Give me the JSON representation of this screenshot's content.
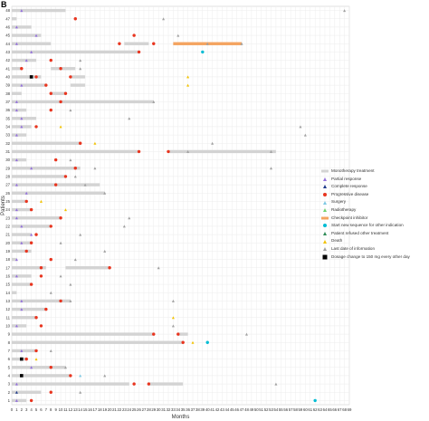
{
  "panel_tag": "B",
  "legend": {
    "items": [
      {
        "key": "treatment",
        "label": "Monotherapy treatment",
        "color": "#d3d3d3",
        "shape": "bar"
      },
      {
        "key": "partial",
        "label": "Partial response",
        "color": "#9370db",
        "shape": "triangle-small"
      },
      {
        "key": "complete",
        "label": "Complete response",
        "color": "#1e3a8a",
        "shape": "triangle-small"
      },
      {
        "key": "progressive",
        "label": "Progressive disease",
        "color": "#e8351f",
        "shape": "dot"
      },
      {
        "key": "surgery",
        "label": "Surgery",
        "color": "#7ec8e3",
        "shape": "triangle-small"
      },
      {
        "key": "radiotherapy",
        "label": "Radiotherapy",
        "color": "#6fd36f",
        "shape": "triangle-small"
      },
      {
        "key": "checkpoint",
        "label": "Checkpoint inhibitor",
        "color": "#f4a460",
        "shape": "bar"
      },
      {
        "key": "new_sequence",
        "label": "Start new sequence for other indication",
        "color": "#00bcd4",
        "shape": "dot"
      },
      {
        "key": "refused",
        "label": "Patient refused other treatment",
        "color": "#2e8b57",
        "shape": "triangle-small"
      },
      {
        "key": "death",
        "label": "Death",
        "color": "#f2c200",
        "shape": "triangle-small"
      },
      {
        "key": "last_info",
        "label": "Last date of information",
        "color": "#a0a0a0",
        "shape": "triangle-small"
      },
      {
        "key": "dosage",
        "label": "Dosage change to 150 mg every other day",
        "color": "#000000",
        "shape": "square"
      }
    ]
  },
  "chart_data": {
    "type": "swimmer",
    "xlabel": "Months",
    "ylabel": "Patients",
    "xlim": [
      0,
      69
    ],
    "x_ticks": [
      0,
      1,
      2,
      3,
      4,
      5,
      6,
      7,
      8,
      9,
      10,
      11,
      12,
      13,
      14,
      15,
      16,
      17,
      18,
      19,
      20,
      21,
      22,
      23,
      24,
      25,
      26,
      27,
      28,
      29,
      30,
      31,
      32,
      33,
      34,
      35,
      36,
      37,
      38,
      39,
      40,
      41,
      42,
      43,
      44,
      45,
      46,
      47,
      48,
      49,
      50,
      51,
      52,
      53,
      54,
      55,
      56,
      57,
      58,
      59,
      60,
      61,
      62,
      63,
      64,
      65,
      66,
      67,
      68,
      69
    ],
    "rows": [
      {
        "patient": "48",
        "bars": [
          [
            0,
            11
          ]
        ],
        "events": [
          [
            "partial",
            2
          ],
          [
            "last_info",
            68
          ]
        ]
      },
      {
        "patient": "47",
        "bars": [
          [
            0,
            1
          ]
        ],
        "events": [
          [
            "progressive",
            13
          ],
          [
            "last_info",
            31
          ]
        ]
      },
      {
        "patient": "46",
        "bars": [
          [
            0,
            4
          ]
        ],
        "events": [
          [
            "partial",
            1
          ]
        ]
      },
      {
        "patient": "45",
        "bars": [
          [
            0,
            6
          ]
        ],
        "events": [
          [
            "partial",
            5
          ],
          [
            "progressive",
            25
          ],
          [
            "last_info",
            34
          ]
        ]
      },
      {
        "patient": "44",
        "bars": [
          [
            0,
            8
          ],
          [
            23,
            28
          ]
        ],
        "checkpoint": [
          [
            33,
            47
          ]
        ],
        "events": [
          [
            "partial",
            1
          ],
          [
            "progressive",
            22
          ],
          [
            "progressive",
            29
          ],
          [
            "last_info",
            40
          ],
          [
            "last_info",
            47
          ]
        ]
      },
      {
        "patient": "43",
        "bars": [
          [
            0,
            26
          ]
        ],
        "events": [
          [
            "partial",
            4
          ],
          [
            "progressive",
            26
          ],
          [
            "new_sequence",
            39
          ]
        ]
      },
      {
        "patient": "42",
        "bars": [
          [
            0,
            5
          ]
        ],
        "events": [
          [
            "partial",
            3
          ],
          [
            "progressive",
            8
          ],
          [
            "last_info",
            14
          ]
        ]
      },
      {
        "patient": "41",
        "bars": [
          [
            0,
            2
          ],
          [
            8,
            13
          ]
        ],
        "events": [
          [
            "progressive",
            2
          ],
          [
            "progressive",
            10
          ],
          [
            "last_info",
            14
          ]
        ]
      },
      {
        "patient": "40",
        "bars": [
          [
            0,
            6
          ],
          [
            12,
            15
          ]
        ],
        "events": [
          [
            "dosage",
            4
          ],
          [
            "progressive",
            5
          ],
          [
            "progressive",
            12
          ],
          [
            "death",
            36
          ]
        ]
      },
      {
        "patient": "39",
        "bars": [
          [
            0,
            7
          ],
          [
            12,
            15
          ]
        ],
        "events": [
          [
            "partial",
            2
          ],
          [
            "progressive",
            7
          ],
          [
            "death",
            36
          ]
        ]
      },
      {
        "patient": "38",
        "bars": [
          [
            0,
            2
          ],
          [
            8,
            11
          ]
        ],
        "events": [
          [
            "progressive",
            8
          ],
          [
            "progressive",
            11
          ]
        ]
      },
      {
        "patient": "37",
        "bars": [
          [
            0,
            29
          ]
        ],
        "events": [
          [
            "partial",
            1
          ],
          [
            "progressive",
            10
          ],
          [
            "last_info",
            29
          ]
        ]
      },
      {
        "patient": "36",
        "bars": [
          [
            0,
            3
          ]
        ],
        "events": [
          [
            "partial",
            1
          ],
          [
            "progressive",
            8
          ],
          [
            "last_info",
            12
          ]
        ]
      },
      {
        "patient": "35",
        "bars": [
          [
            0,
            5
          ]
        ],
        "events": [
          [
            "partial",
            2
          ],
          [
            "last_info",
            24
          ]
        ]
      },
      {
        "patient": "34",
        "bars": [
          [
            0,
            4
          ]
        ],
        "events": [
          [
            "partial",
            2
          ],
          [
            "progressive",
            5
          ],
          [
            "death",
            10
          ],
          [
            "last_info",
            59
          ]
        ]
      },
      {
        "patient": "33",
        "bars": [
          [
            0,
            3
          ]
        ],
        "events": [
          [
            "partial",
            1
          ],
          [
            "last_info",
            60
          ]
        ]
      },
      {
        "patient": "32",
        "bars": [
          [
            0,
            14
          ]
        ],
        "events": [
          [
            "progressive",
            14
          ],
          [
            "death",
            17
          ],
          [
            "last_info",
            41
          ]
        ]
      },
      {
        "patient": "31",
        "bars": [
          [
            0,
            26
          ],
          [
            32,
            54
          ]
        ],
        "events": [
          [
            "progressive",
            26
          ],
          [
            "progressive",
            32
          ],
          [
            "last_info",
            36
          ],
          [
            "last_info",
            53
          ]
        ]
      },
      {
        "patient": "30",
        "bars": [
          [
            0,
            3
          ]
        ],
        "events": [
          [
            "partial",
            1
          ],
          [
            "progressive",
            9
          ],
          [
            "last_info",
            12
          ]
        ]
      },
      {
        "patient": "29",
        "bars": [
          [
            0,
            14
          ]
        ],
        "events": [
          [
            "partial",
            4
          ],
          [
            "progressive",
            13
          ],
          [
            "last_info",
            17
          ],
          [
            "last_info",
            53
          ]
        ]
      },
      {
        "patient": "28",
        "bars": [
          [
            0,
            11
          ]
        ],
        "events": [
          [
            "progressive",
            11
          ],
          [
            "last_info",
            13
          ]
        ]
      },
      {
        "patient": "27",
        "bars": [
          [
            0,
            18
          ]
        ],
        "events": [
          [
            "partial",
            1
          ],
          [
            "progressive",
            9
          ],
          [
            "last_info",
            15
          ]
        ]
      },
      {
        "patient": "26",
        "bars": [
          [
            0,
            19
          ]
        ],
        "events": [
          [
            "partial",
            3
          ],
          [
            "last_info",
            19
          ]
        ]
      },
      {
        "patient": "25",
        "bars": [
          [
            0,
            3
          ]
        ],
        "events": [
          [
            "progressive",
            3
          ],
          [
            "death",
            6
          ]
        ]
      },
      {
        "patient": "24",
        "bars": [
          [
            0,
            4
          ]
        ],
        "events": [
          [
            "partial",
            1
          ],
          [
            "progressive",
            4
          ],
          [
            "death",
            11
          ]
        ]
      },
      {
        "patient": "23",
        "bars": [
          [
            0,
            10
          ]
        ],
        "events": [
          [
            "partial",
            1
          ],
          [
            "progressive",
            10
          ],
          [
            "last_info",
            24
          ]
        ]
      },
      {
        "patient": "22",
        "bars": [
          [
            0,
            8
          ]
        ],
        "events": [
          [
            "partial",
            2
          ],
          [
            "progressive",
            8
          ],
          [
            "last_info",
            23
          ]
        ]
      },
      {
        "patient": "21",
        "bars": [
          [
            0,
            4
          ]
        ],
        "events": [
          [
            "partial",
            4
          ],
          [
            "progressive",
            5
          ],
          [
            "last_info",
            14
          ]
        ]
      },
      {
        "patient": "20",
        "bars": [
          [
            0,
            4
          ]
        ],
        "events": [
          [
            "partial",
            2
          ],
          [
            "progressive",
            4
          ],
          [
            "last_info",
            10
          ]
        ]
      },
      {
        "patient": "19",
        "bars": [
          [
            0,
            4
          ]
        ],
        "events": [
          [
            "progressive",
            3
          ],
          [
            "last_info",
            19
          ]
        ]
      },
      {
        "patient": "18",
        "bars": [
          [
            0,
            1
          ]
        ],
        "events": [
          [
            "partial",
            1
          ],
          [
            "progressive",
            8
          ],
          [
            "last_info",
            13
          ]
        ]
      },
      {
        "patient": "17",
        "bars": [
          [
            0,
            7
          ],
          [
            11,
            20
          ]
        ],
        "events": [
          [
            "progressive",
            6
          ],
          [
            "progressive",
            20
          ],
          [
            "last_info",
            30
          ]
        ]
      },
      {
        "patient": "16",
        "bars": [
          [
            0,
            4
          ]
        ],
        "events": [
          [
            "partial",
            1
          ],
          [
            "progressive",
            6
          ],
          [
            "last_info",
            10
          ]
        ]
      },
      {
        "patient": "15",
        "bars": [
          [
            0,
            4
          ]
        ],
        "events": [
          [
            "progressive",
            4
          ],
          [
            "last_info",
            12
          ]
        ]
      },
      {
        "patient": "14",
        "bars": [
          [
            0,
            1
          ]
        ],
        "events": [
          [
            "last_info",
            8
          ]
        ]
      },
      {
        "patient": "13",
        "bars": [
          [
            0,
            12
          ]
        ],
        "events": [
          [
            "partial",
            2
          ],
          [
            "progressive",
            10
          ],
          [
            "last_info",
            12
          ],
          [
            "last_info",
            33
          ]
        ]
      },
      {
        "patient": "12",
        "bars": [
          [
            0,
            7
          ]
        ],
        "events": [
          [
            "partial",
            2
          ],
          [
            "progressive",
            7
          ]
        ]
      },
      {
        "patient": "11",
        "bars": [
          [
            0,
            5
          ]
        ],
        "events": [
          [
            "progressive",
            5
          ],
          [
            "death",
            33
          ]
        ]
      },
      {
        "patient": "10",
        "bars": [
          [
            0,
            3
          ]
        ],
        "events": [
          [
            "partial",
            1
          ],
          [
            "progressive",
            6
          ],
          [
            "last_info",
            33
          ]
        ]
      },
      {
        "patient": "9",
        "bars": [
          [
            0,
            29
          ],
          [
            34,
            36
          ]
        ],
        "events": [
          [
            "progressive",
            29
          ],
          [
            "progressive",
            34
          ],
          [
            "last_info",
            48
          ]
        ]
      },
      {
        "patient": "8",
        "bars": [
          [
            0,
            35
          ]
        ],
        "events": [
          [
            "progressive",
            35
          ],
          [
            "death",
            37
          ],
          [
            "new_sequence",
            40
          ]
        ]
      },
      {
        "patient": "7",
        "bars": [
          [
            0,
            5
          ]
        ],
        "events": [
          [
            "partial",
            2
          ],
          [
            "progressive",
            5
          ],
          [
            "last_info",
            8
          ]
        ]
      },
      {
        "patient": "6",
        "bars": [
          [
            0,
            3
          ]
        ],
        "events": [
          [
            "dosage",
            2
          ],
          [
            "progressive",
            3
          ],
          [
            "death",
            5
          ]
        ]
      },
      {
        "patient": "5",
        "bars": [
          [
            0,
            11
          ]
        ],
        "events": [
          [
            "partial",
            4
          ],
          [
            "progressive",
            8
          ],
          [
            "last_info",
            11
          ]
        ]
      },
      {
        "patient": "4",
        "bars": [
          [
            0,
            12
          ]
        ],
        "events": [
          [
            "dosage",
            2
          ],
          [
            "progressive",
            12
          ],
          [
            "surgery",
            14
          ],
          [
            "last_info",
            19
          ]
        ]
      },
      {
        "patient": "3",
        "bars": [
          [
            0,
            24
          ],
          [
            28,
            35
          ]
        ],
        "events": [
          [
            "partial",
            1
          ],
          [
            "progressive",
            25
          ],
          [
            "progressive",
            28
          ],
          [
            "last_info",
            54
          ]
        ]
      },
      {
        "patient": "2",
        "bars": [
          [
            0,
            6
          ]
        ],
        "events": [
          [
            "complete",
            1
          ],
          [
            "progressive",
            8
          ],
          [
            "last_info",
            14
          ]
        ]
      },
      {
        "patient": "1",
        "bars": [
          [
            0,
            3
          ]
        ],
        "events": [
          [
            "partial",
            1
          ],
          [
            "progressive",
            4
          ],
          [
            "new_sequence",
            62
          ]
        ]
      }
    ]
  }
}
